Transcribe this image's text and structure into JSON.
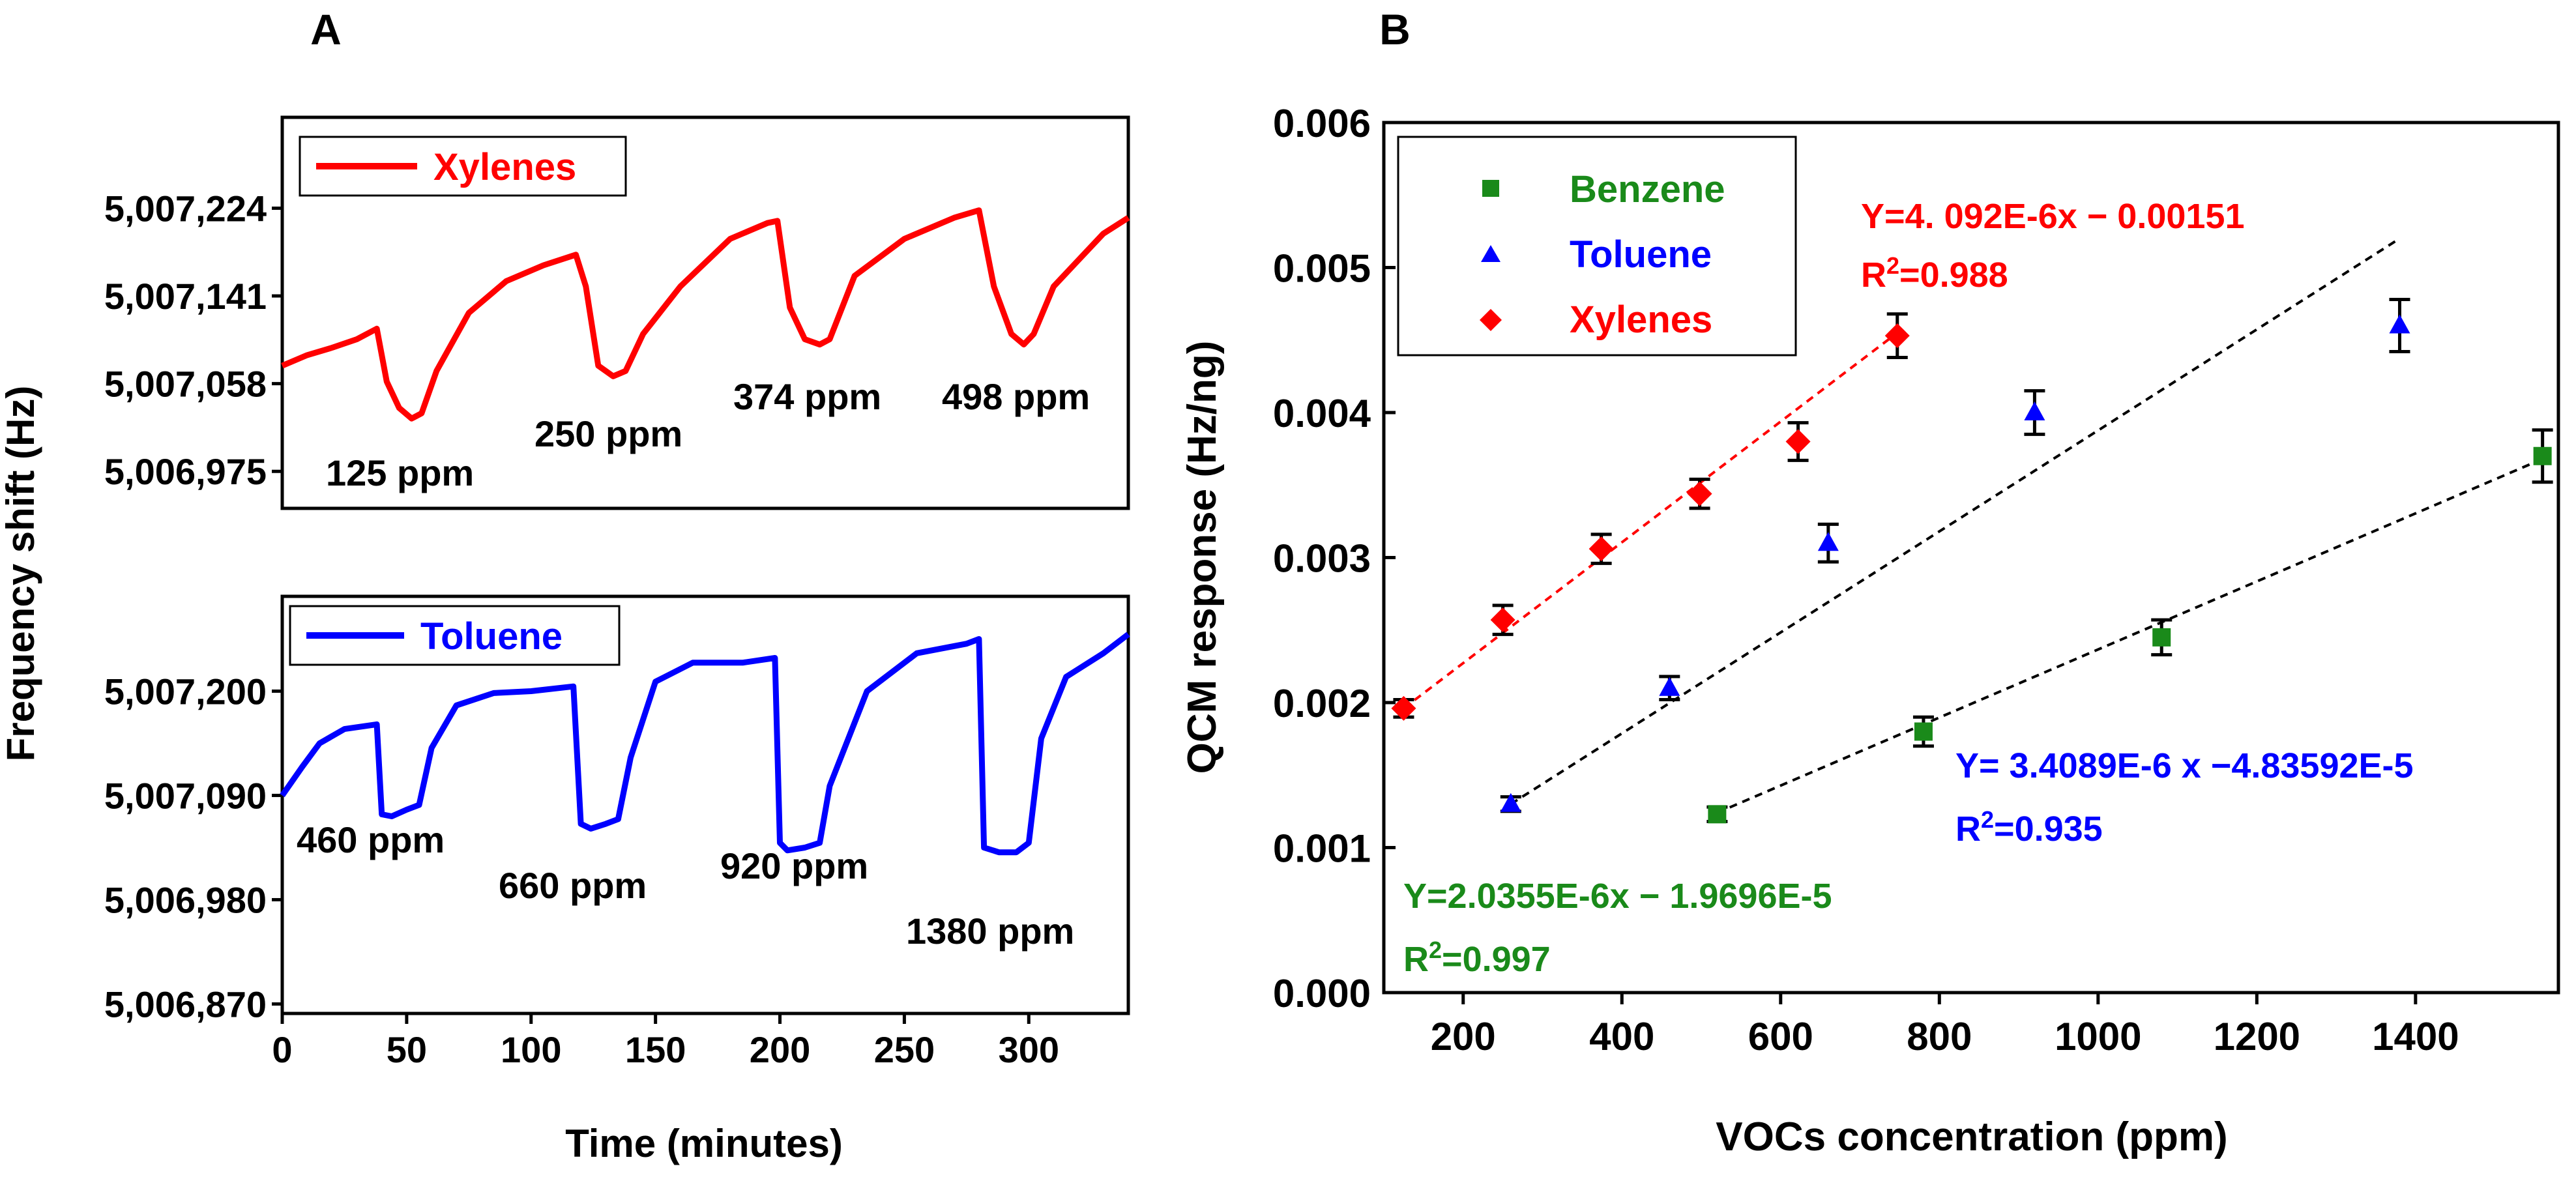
{
  "panel_a": {
    "letter": "A",
    "ylabel": "Frequency shift (Hz)",
    "xlabel": "Time (minutes)"
  },
  "panel_b": {
    "letter": "B"
  },
  "colors": {
    "xylenes": "#ff0000",
    "toluene": "#0000ff",
    "benzene": "#1a8a1a",
    "fit_black": "#000000"
  },
  "chart_data": [
    {
      "id": "A-top",
      "type": "line",
      "legend": "Xylenes",
      "xlim": [
        0,
        340
      ],
      "ylim": [
        5006940,
        5007310
      ],
      "yticks": [
        5006975,
        5007058,
        5007141,
        5007224
      ],
      "ytick_labels": [
        "5,006,975",
        "5,007,058",
        "5,007,141",
        "5,007,224"
      ],
      "x": [
        0,
        10,
        20,
        30,
        38,
        42,
        47,
        52,
        56,
        62,
        75,
        90,
        105,
        118,
        122,
        127,
        133,
        138,
        145,
        160,
        180,
        195,
        199,
        204,
        210,
        216,
        220,
        230,
        250,
        270,
        280,
        286,
        293,
        298,
        302,
        310,
        320,
        330,
        340
      ],
      "y": [
        5007075,
        5007085,
        5007092,
        5007100,
        5007110,
        5007060,
        5007035,
        5007025,
        5007030,
        5007070,
        5007125,
        5007155,
        5007170,
        5007180,
        5007150,
        5007075,
        5007065,
        5007070,
        5007105,
        5007150,
        5007195,
        5007210,
        5007212,
        5007130,
        5007100,
        5007095,
        5007100,
        5007160,
        5007195,
        5007215,
        5007222,
        5007150,
        5007105,
        5007095,
        5007105,
        5007150,
        5007175,
        5007200,
        5007215
      ],
      "annotations": [
        "125 ppm",
        "250 ppm",
        "374 ppm",
        "498 ppm"
      ]
    },
    {
      "id": "A-bottom",
      "type": "line",
      "legend": "Toluene",
      "xlim": [
        0,
        340
      ],
      "xticks": [
        0,
        50,
        100,
        150,
        200,
        250,
        300
      ],
      "xtick_labels": [
        "0",
        "50",
        "100",
        "150",
        "200",
        "250",
        "300"
      ],
      "ylim": [
        5006860,
        5007300
      ],
      "yticks": [
        5006870,
        5006980,
        5007090,
        5007200
      ],
      "ytick_labels": [
        "5,006,870",
        "5,006,980",
        "5,007,090",
        "5,007,200"
      ],
      "x": [
        0,
        8,
        15,
        25,
        38,
        40,
        44,
        50,
        55,
        60,
        70,
        85,
        100,
        117,
        120,
        124,
        130,
        135,
        140,
        150,
        165,
        185,
        198,
        200,
        203,
        210,
        216,
        220,
        235,
        255,
        275,
        280,
        282,
        288,
        295,
        300,
        305,
        315,
        330,
        340
      ],
      "y": [
        5007090,
        5007120,
        5007145,
        5007160,
        5007165,
        5007070,
        5007068,
        5007075,
        5007080,
        5007140,
        5007185,
        5007198,
        5007200,
        5007205,
        5007060,
        5007055,
        5007060,
        5007065,
        5007130,
        5007210,
        5007230,
        5007230,
        5007235,
        5007040,
        5007032,
        5007035,
        5007040,
        5007100,
        5007200,
        5007240,
        5007250,
        5007255,
        5007035,
        5007030,
        5007030,
        5007040,
        5007150,
        5007215,
        5007240,
        5007260
      ],
      "annotations": [
        "460 ppm",
        "660 ppm",
        "920 ppm",
        "1380 ppm"
      ]
    },
    {
      "id": "B",
      "type": "scatter",
      "xlabel": "VOCs concentration (ppm)",
      "ylabel": "QCM response (Hz/ng)",
      "xlim": [
        100,
        1580
      ],
      "ylim": [
        0,
        0.006
      ],
      "xticks": [
        200,
        400,
        600,
        800,
        1000,
        1200,
        1400
      ],
      "xtick_labels": [
        "200",
        "400",
        "600",
        "800",
        "1000",
        "1200",
        "1400"
      ],
      "yticks": [
        0,
        0.001,
        0.002,
        0.003,
        0.004,
        0.005,
        0.006
      ],
      "ytick_labels": [
        "0.000",
        "0.001",
        "0.002",
        "0.003",
        "0.004",
        "0.005",
        "0.006"
      ],
      "series": [
        {
          "name": "Benzene",
          "marker": "square",
          "x": [
            520,
            780,
            1080,
            1560
          ],
          "y": [
            0.00123,
            0.0018,
            0.00245,
            0.0037
          ],
          "err": [
            5e-05,
            0.0001,
            0.00012,
            0.00018
          ],
          "fit": {
            "x": [
              520,
              1560
            ],
            "y": [
              0.00124,
              0.00368
            ]
          },
          "equation": "Y=2.0355E-6x − 1.9696E-5",
          "r2_prefix": "R",
          "r2_sup": "2",
          "r2_value": "=0.997"
        },
        {
          "name": "Toluene",
          "marker": "triangle",
          "x": [
            260,
            460,
            660,
            920,
            1380
          ],
          "y": [
            0.0013,
            0.0021,
            0.0031,
            0.004,
            0.0046
          ],
          "err": [
            5e-05,
            8e-05,
            0.00013,
            0.00015,
            0.00018
          ],
          "fit": {
            "x": [
              260,
              1380
            ],
            "y": [
              0.0013,
              0.0052
            ]
          },
          "equation": "Y= 3.4089E-6 x −4.83592E-5",
          "r2_prefix": "R",
          "r2_sup": "2",
          "r2_value": "=0.935"
        },
        {
          "name": "Xylenes",
          "marker": "diamond",
          "x": [
            125,
            250,
            374,
            498,
            622,
            747
          ],
          "y": [
            0.00196,
            0.00257,
            0.00306,
            0.00344,
            0.0038,
            0.00453
          ],
          "err": [
            6e-05,
            0.0001,
            0.0001,
            0.0001,
            0.00013,
            0.00015
          ],
          "fit": {
            "x": [
              125,
              747
            ],
            "y": [
              0.00196,
              0.00455
            ]
          },
          "equation": "Y=4. 092E-6x − 0.00151",
          "r2_prefix": "R",
          "r2_sup": "2",
          "r2_value": "=0.988"
        }
      ]
    }
  ]
}
